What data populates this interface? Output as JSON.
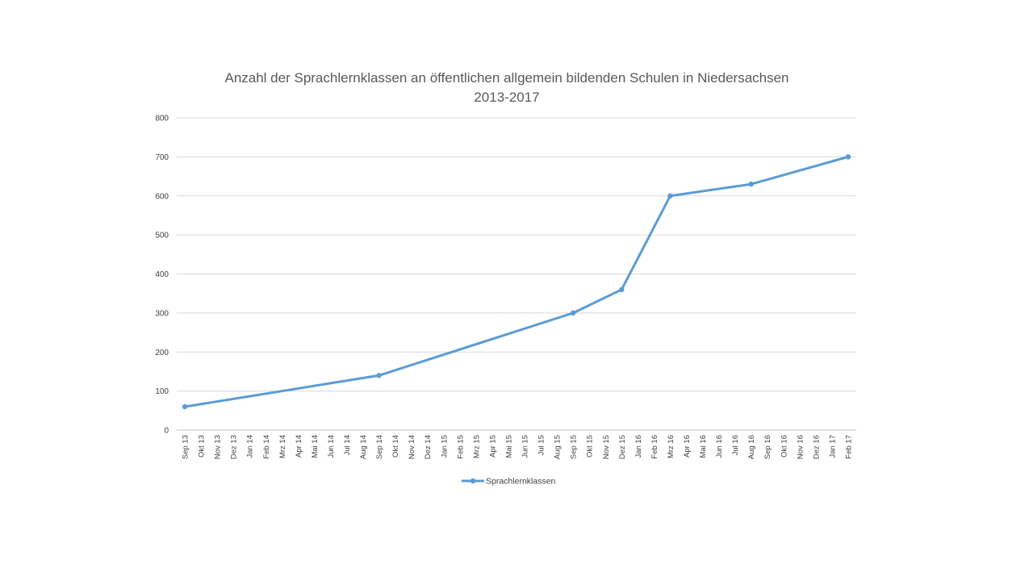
{
  "chart_data": {
    "type": "line",
    "title": [
      "Anzahl der Sprachlernklassen an öffentlichen allgemein bildenden Schulen in Niedersachsen",
      "2013-2017"
    ],
    "xlabel": "",
    "ylabel": "",
    "ylim": [
      0,
      800
    ],
    "yticks": [
      0,
      100,
      200,
      300,
      400,
      500,
      600,
      700,
      800
    ],
    "grid": "horizontal",
    "legend_position": "bottom",
    "categories": [
      "Sep 13",
      "Okt 13",
      "Nov 13",
      "Dez 13",
      "Jan 14",
      "Feb 14",
      "Mrz 14",
      "Apr 14",
      "Mai 14",
      "Jun 14",
      "Jul 14",
      "Aug 14",
      "Sep 14",
      "Okt 14",
      "Nov 14",
      "Dez 14",
      "Jan 15",
      "Feb 15",
      "Mrz 15",
      "Apr 15",
      "Mai 15",
      "Jun 15",
      "Jul 15",
      "Aug 15",
      "Sep 15",
      "Okt 15",
      "Nov 15",
      "Dez 15",
      "Jan 16",
      "Feb 16",
      "Mrz 16",
      "Apr 16",
      "Mai 16",
      "Jun 16",
      "Jul 16",
      "Aug 16",
      "Sep 16",
      "Okt 16",
      "Nov 16",
      "Dez 16",
      "Jan 17",
      "Feb 17"
    ],
    "series": [
      {
        "name": "Sprachlernklassen",
        "color": "#5b9bd5",
        "points": [
          {
            "x": "Sep 13",
            "y": 60
          },
          {
            "x": "Sep 14",
            "y": 140
          },
          {
            "x": "Sep 15",
            "y": 300
          },
          {
            "x": "Dez 15",
            "y": 360
          },
          {
            "x": "Mrz 16",
            "y": 600
          },
          {
            "x": "Aug 16",
            "y": 630
          },
          {
            "x": "Feb 17",
            "y": 700
          }
        ]
      }
    ]
  },
  "colors": {
    "gridline": "#d9d9d9",
    "axis": "#bfbfbf",
    "series": "#5b9bd5"
  }
}
